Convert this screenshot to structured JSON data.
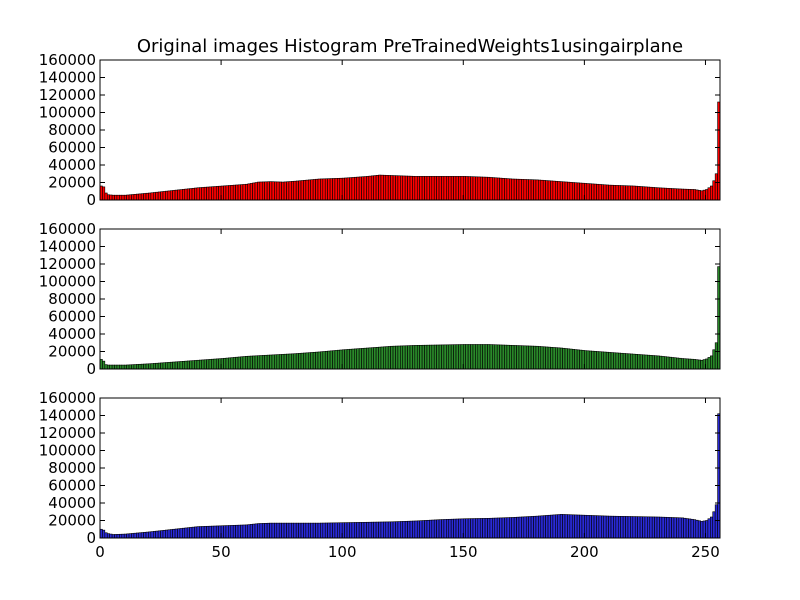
{
  "chart_data": {
    "type": "bar",
    "title": "Original images Histogram PreTrainedWeights1usingairplane",
    "x_ticks": [
      0,
      50,
      100,
      150,
      200,
      250
    ],
    "xlim": [
      0,
      256
    ],
    "ylim": [
      0,
      160000
    ],
    "y_ticks": [
      0,
      20000,
      40000,
      60000,
      80000,
      100000,
      120000,
      140000,
      160000
    ],
    "grid": false,
    "bins": 256,
    "series": [
      {
        "color": "#ff0000",
        "profile": [
          [
            0,
            16000
          ],
          [
            1,
            15000
          ],
          [
            2,
            8000
          ],
          [
            3,
            6000
          ],
          [
            5,
            5500
          ],
          [
            10,
            5500
          ],
          [
            20,
            8000
          ],
          [
            30,
            11000
          ],
          [
            40,
            14000
          ],
          [
            50,
            16000
          ],
          [
            60,
            18000
          ],
          [
            65,
            20500
          ],
          [
            70,
            21000
          ],
          [
            75,
            20500
          ],
          [
            80,
            21500
          ],
          [
            90,
            24000
          ],
          [
            100,
            25000
          ],
          [
            110,
            27000
          ],
          [
            115,
            28500
          ],
          [
            120,
            28000
          ],
          [
            125,
            27500
          ],
          [
            130,
            27000
          ],
          [
            140,
            27000
          ],
          [
            150,
            27000
          ],
          [
            155,
            26500
          ],
          [
            160,
            26000
          ],
          [
            170,
            24000
          ],
          [
            180,
            23000
          ],
          [
            190,
            21000
          ],
          [
            200,
            19000
          ],
          [
            210,
            17000
          ],
          [
            220,
            16000
          ],
          [
            230,
            14000
          ],
          [
            240,
            12500
          ],
          [
            245,
            12000
          ],
          [
            248,
            10500
          ],
          [
            250,
            12000
          ],
          [
            252,
            16000
          ],
          [
            253,
            22000
          ],
          [
            254,
            30000
          ],
          [
            255,
            112000
          ]
        ]
      },
      {
        "color": "#2a8a2a",
        "profile": [
          [
            0,
            11000
          ],
          [
            1,
            9000
          ],
          [
            2,
            5000
          ],
          [
            3,
            4500
          ],
          [
            10,
            4500
          ],
          [
            20,
            6000
          ],
          [
            30,
            8000
          ],
          [
            40,
            10000
          ],
          [
            50,
            12000
          ],
          [
            60,
            14500
          ],
          [
            70,
            16000
          ],
          [
            80,
            17500
          ],
          [
            90,
            19500
          ],
          [
            100,
            22000
          ],
          [
            110,
            24000
          ],
          [
            120,
            26000
          ],
          [
            130,
            27000
          ],
          [
            140,
            27500
          ],
          [
            150,
            28000
          ],
          [
            155,
            28000
          ],
          [
            160,
            28000
          ],
          [
            170,
            27000
          ],
          [
            180,
            26000
          ],
          [
            190,
            24000
          ],
          [
            200,
            21000
          ],
          [
            210,
            19000
          ],
          [
            220,
            17000
          ],
          [
            230,
            15000
          ],
          [
            240,
            12000
          ],
          [
            245,
            11000
          ],
          [
            248,
            10000
          ],
          [
            250,
            11500
          ],
          [
            252,
            15000
          ],
          [
            253,
            22000
          ],
          [
            254,
            30000
          ],
          [
            255,
            117000
          ]
        ]
      },
      {
        "color": "#2a2ad8",
        "profile": [
          [
            0,
            10000
          ],
          [
            1,
            9000
          ],
          [
            2,
            6000
          ],
          [
            3,
            5000
          ],
          [
            5,
            4000
          ],
          [
            10,
            4500
          ],
          [
            20,
            7000
          ],
          [
            30,
            10000
          ],
          [
            40,
            13000
          ],
          [
            50,
            14000
          ],
          [
            60,
            15000
          ],
          [
            65,
            16500
          ],
          [
            70,
            17000
          ],
          [
            80,
            17000
          ],
          [
            90,
            17000
          ],
          [
            100,
            17500
          ],
          [
            110,
            18000
          ],
          [
            120,
            18500
          ],
          [
            130,
            19500
          ],
          [
            140,
            21000
          ],
          [
            150,
            22000
          ],
          [
            160,
            22500
          ],
          [
            170,
            23500
          ],
          [
            180,
            25000
          ],
          [
            190,
            27000
          ],
          [
            200,
            26000
          ],
          [
            210,
            25000
          ],
          [
            220,
            24500
          ],
          [
            230,
            24000
          ],
          [
            240,
            23000
          ],
          [
            245,
            21000
          ],
          [
            248,
            19000
          ],
          [
            250,
            20000
          ],
          [
            252,
            24000
          ],
          [
            253,
            30000
          ],
          [
            254,
            38000
          ],
          [
            255,
            142000
          ]
        ]
      }
    ]
  }
}
